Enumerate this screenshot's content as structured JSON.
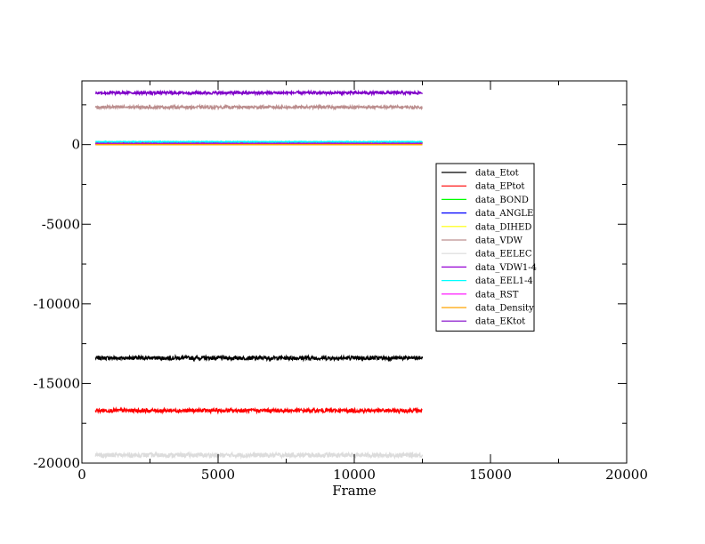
{
  "chart_data": {
    "type": "line",
    "title": "",
    "xlabel": "Frame",
    "ylabel": "",
    "xlim": [
      0,
      20000
    ],
    "ylim": [
      -20000,
      4000
    ],
    "xticks": [
      0,
      5000,
      10000,
      15000,
      20000
    ],
    "xtick_labels": [
      "0",
      "5000",
      "10000",
      "15000",
      "20000"
    ],
    "yticks": [
      0,
      -5000,
      -10000,
      -15000,
      -20000
    ],
    "ytick_labels": [
      "0",
      "-5000",
      "-10000",
      "-15000",
      "-20000"
    ],
    "grid": false,
    "legend_position": "right-center",
    "x_start": 500,
    "x_end": 12500,
    "series": [
      {
        "name": "data_Etot",
        "color": "#000000",
        "value": -13400,
        "noise": 120
      },
      {
        "name": "data_EPtot",
        "color": "#ff0000",
        "value": -16700,
        "noise": 120
      },
      {
        "name": "data_BOND",
        "color": "#00ff00",
        "value": 60,
        "noise": 20
      },
      {
        "name": "data_ANGLE",
        "color": "#0000ff",
        "value": 120,
        "noise": 20
      },
      {
        "name": "data_DIHED",
        "color": "#ffff00",
        "value": 150,
        "noise": 20
      },
      {
        "name": "data_VDW",
        "color": "#bc8f8f",
        "value": 2350,
        "noise": 90
      },
      {
        "name": "data_EELEC",
        "color": "#dcdcdc",
        "value": -19500,
        "noise": 140
      },
      {
        "name": "data_VDW1-4",
        "color": "#9400d3",
        "value": 80,
        "noise": 20
      },
      {
        "name": "data_EEL1-4",
        "color": "#00ffff",
        "value": 180,
        "noise": 20
      },
      {
        "name": "data_RST",
        "color": "#ff00ff",
        "value": 10,
        "noise": 5
      },
      {
        "name": "data_Density",
        "color": "#ffa500",
        "value": 1,
        "noise": 1
      },
      {
        "name": "data_EKtot",
        "color": "#7f00c8",
        "value": 3250,
        "noise": 90
      }
    ]
  }
}
